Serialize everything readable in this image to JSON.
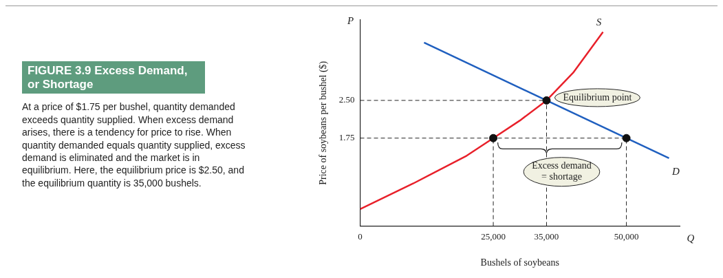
{
  "chart_data": {
    "type": "line",
    "title": "FIGURE 3.9 Excess Demand, or Shortage",
    "xlabel": "Bushels of soybeans",
    "ylabel": "Price of soybeans per bushel ($)",
    "annotations": [
      "P",
      "Q",
      "At a price of $1.75 per bushel, quantity demanded exceeds quantity supplied. When excess demand arises, there is a tendency for price to rise. When quantity demanded equals quantity supplied, excess demand is eliminated and the market is in equilibrium. Here, the equilibrium price is $2.50, and the equilibrium quantity is 35,000 bushels.",
      {
        "text": "Equilibrium point",
        "x": 35000,
        "y": 2.5
      },
      {
        "text": "Excess demand = shortage",
        "x": 35000,
        "y": 1.75
      }
    ],
    "series": [
      {
        "name": "S",
        "color": "#e8202a",
        "marker": "none",
        "x": [
          0,
          10000,
          20000,
          25000,
          30000,
          35000,
          40000,
          45600
        ],
        "values": [
          0.34,
          0.85,
          1.4,
          1.75,
          2.1,
          2.5,
          3.05,
          3.86
        ]
      },
      {
        "name": "D",
        "color": "#1f5fbf",
        "marker": "none",
        "x": [
          12000,
          58000
        ],
        "values": [
          3.65,
          1.35
        ]
      },
      {
        "type": "scatter",
        "color": "#111111",
        "marker": "circle",
        "x": [
          25000,
          35000,
          50000
        ],
        "values": [
          1.75,
          2.5,
          1.75
        ]
      }
    ],
    "ref_lines": [
      {
        "axis": "y",
        "value": 2.5,
        "line_style": "dashed",
        "color": "#222222"
      },
      {
        "axis": "y",
        "value": 1.75,
        "line_style": "dashed",
        "color": "#222222"
      },
      {
        "axis": "x",
        "value": 25000,
        "line_style": "dashed",
        "color": "#222222"
      },
      {
        "axis": "x",
        "value": 35000,
        "line_style": "dashed",
        "color": "#222222"
      },
      {
        "axis": "x",
        "value": 50000,
        "line_style": "dashed",
        "color": "#222222"
      }
    ],
    "xlim": [
      0,
      60000
    ],
    "xticks": [
      0,
      {
        "value": 25000,
        "label": "25,000"
      },
      {
        "value": 35000,
        "label": "35,000"
      },
      {
        "value": 50000,
        "label": "50,000"
      }
    ],
    "ylim": [
      0,
      4.1
    ],
    "yticks": [
      {
        "value": 1.75,
        "label": "1.75"
      },
      {
        "value": 2.5,
        "label": "2.50"
      }
    ],
    "grid": false,
    "legend": false,
    "line_style": "solid"
  }
}
